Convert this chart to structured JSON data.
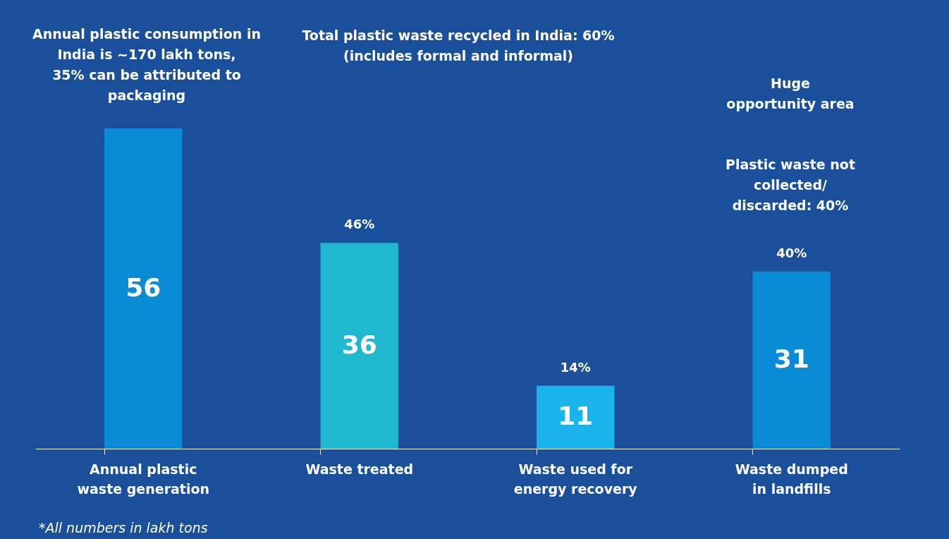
{
  "chart_data": {
    "type": "bar",
    "categories": [
      "Annual plastic waste generation",
      "Waste treated",
      "Waste used for energy recovery",
      "Waste dumped in landfills"
    ],
    "values": [
      56,
      36,
      11,
      31
    ],
    "colors": [
      "#0a8bd6",
      "#1fb8cf",
      "#1ab4ec",
      "#0a8bd6"
    ],
    "data_labels": true,
    "annotations": [
      "Annual plastic consumption in India is ~170 lakh tons, 35% can be attributed to packaging",
      "Total plastic waste recycled in India: 60% (includes formal and informal)",
      "Huge opportunity area",
      "Plastic waste not collected/ discarded: 40%",
      "*All numbers in lakh tons",
      {
        "text": "46%",
        "x": "Waste treated",
        "y": 36
      },
      {
        "text": "14%",
        "x": "Waste used for energy recovery",
        "y": 11
      },
      {
        "text": "40%",
        "x": "Waste dumped in landfills",
        "y": 31
      }
    ]
  }
}
